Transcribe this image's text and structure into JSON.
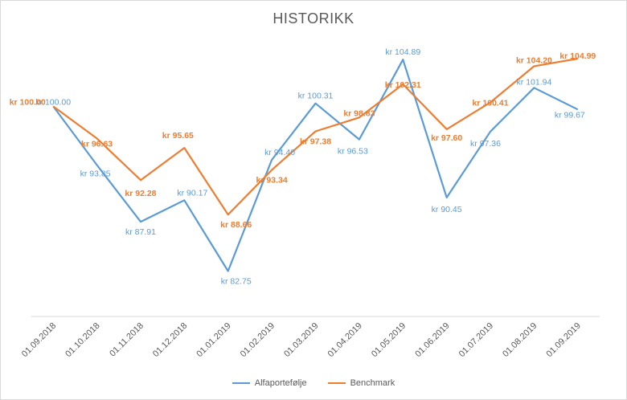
{
  "chart_data": {
    "type": "line",
    "title": "HISTORIKK",
    "categories": [
      "01.09.2018",
      "01.10.2018",
      "01.11.2018",
      "01.12.2018",
      "01.01.2019",
      "01.02.2019",
      "01.03.2019",
      "01.04.2019",
      "01.05.2019",
      "01.06.2019",
      "01.07.2019",
      "01.08.2019",
      "01.09.2019"
    ],
    "series": [
      {
        "name": "Alfaportefølje",
        "color": "#5b9bd5",
        "values": [
          100.0,
          93.85,
          87.91,
          90.17,
          82.75,
          94.4,
          100.31,
          96.53,
          104.89,
          90.45,
          97.36,
          101.94,
          99.67
        ],
        "labels": [
          "kr 100.00",
          "kr 93.85",
          "kr 87.91",
          "kr 90.17",
          "kr 82.75",
          "kr 94.40",
          "kr 100.31",
          "kr 96.53",
          "kr 104.89",
          "kr 90.45",
          "kr 97.36",
          "kr 101.94",
          "kr 99.67"
        ]
      },
      {
        "name": "Benchmark",
        "color": "#ed7d31",
        "values": [
          100.0,
          96.63,
          92.28,
          95.65,
          88.66,
          93.34,
          97.38,
          98.83,
          102.31,
          97.6,
          100.41,
          104.2,
          104.99
        ],
        "labels": [
          "kr 100.00",
          "kr 96.63",
          "kr 92.28",
          "kr 95.65",
          "kr 88.66",
          "kr 93.34",
          "kr 97.38",
          "kr 98.83",
          "kr 102.31",
          "kr 97.60",
          "kr 100.41",
          "kr 104.20",
          "kr 104.99"
        ]
      }
    ],
    "ylim": [
      78,
      106
    ],
    "grid": false,
    "legend": "bottom"
  }
}
